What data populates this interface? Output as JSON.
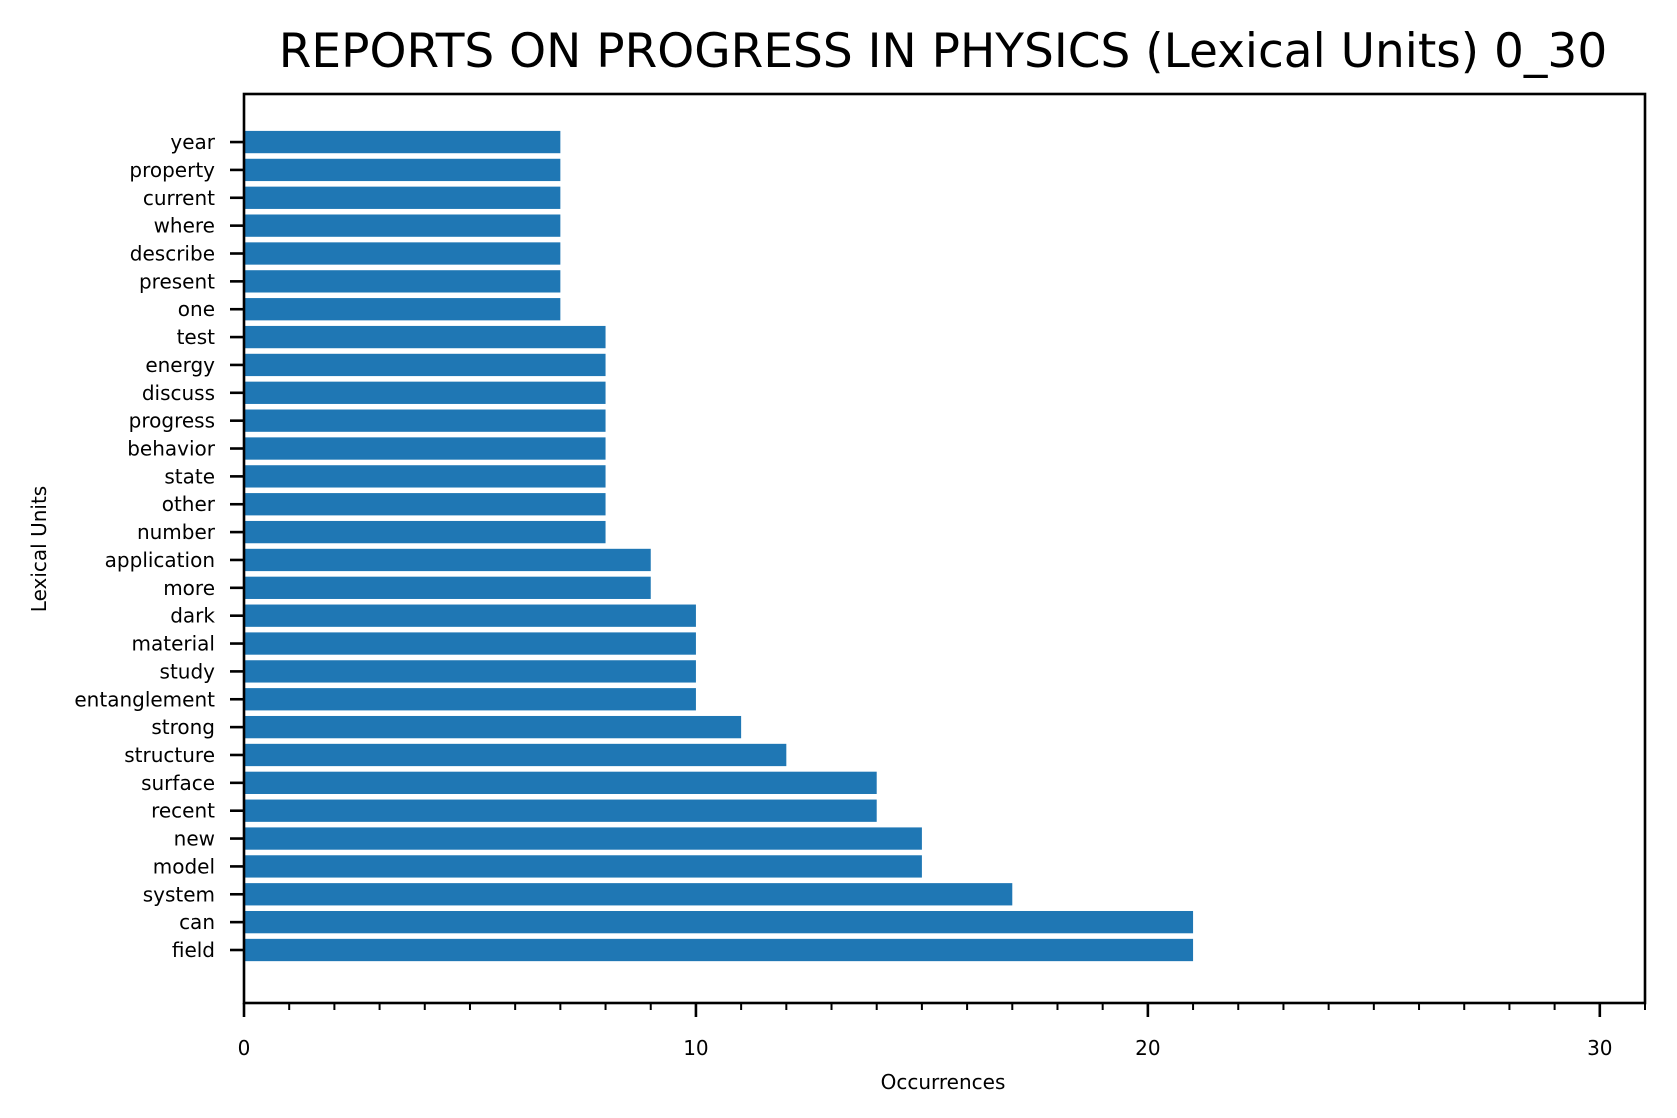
{
  "chart_data": {
    "type": "bar",
    "orientation": "horizontal",
    "title": "REPORTS ON PROGRESS IN PHYSICS (Lexical Units) 0_30",
    "xlabel": "Occurrences",
    "ylabel": "Lexical Units",
    "xlim": [
      0,
      31
    ],
    "xticks": [
      0,
      10,
      20,
      30
    ],
    "x_minor_step": 1,
    "grid": false,
    "legend": "none",
    "bar_color": "#1f77b4",
    "categories": [
      "field",
      "can",
      "system",
      "model",
      "new",
      "recent",
      "surface",
      "structure",
      "strong",
      "entanglement",
      "study",
      "material",
      "dark",
      "more",
      "application",
      "number",
      "other",
      "state",
      "behavior",
      "progress",
      "discuss",
      "energy",
      "test",
      "one",
      "present",
      "describe",
      "where",
      "current",
      "property",
      "year"
    ],
    "values": [
      21,
      21,
      17,
      15,
      15,
      14,
      14,
      12,
      11,
      10,
      10,
      10,
      10,
      9,
      9,
      8,
      8,
      8,
      8,
      8,
      8,
      8,
      8,
      7,
      7,
      7,
      7,
      7,
      7,
      7
    ]
  }
}
